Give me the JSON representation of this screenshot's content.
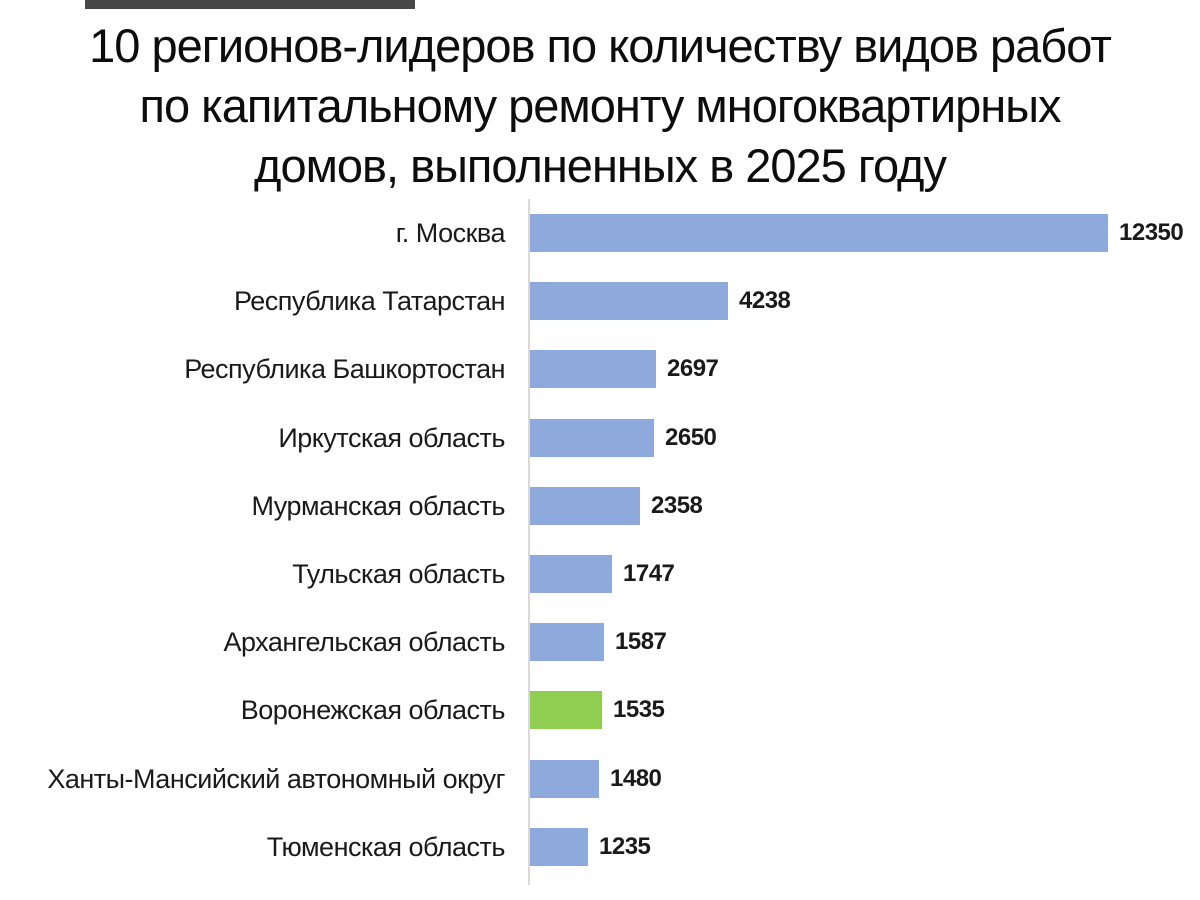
{
  "title": {
    "lines": [
      "10 регионов-лидеров по количеству видов работ",
      "по капитальному ремонту многоквартирных",
      "домов, выполненных в 2025 году"
    ]
  },
  "chart_data": {
    "type": "bar",
    "orientation": "horizontal",
    "title": "10 регионов-лидеров по количеству видов работ по капитальному ремонту многоквартирных домов, выполненных в 2025 году",
    "categories": [
      "г. Москва",
      "Республика Татарстан",
      "Республика Башкортостан",
      "Иркутская область",
      "Мурманская область",
      "Тульская область",
      "Архангельская область",
      "Воронежская область",
      "Ханты-Мансийский автономный округ",
      "Тюменская область"
    ],
    "values": [
      12350,
      4238,
      2697,
      2650,
      2358,
      1747,
      1587,
      1535,
      1480,
      1235
    ],
    "value_labels_shown": true,
    "highlight_index": 7,
    "highlight_category": "Воронежская область",
    "colors": {
      "bar_default": "#8EA9DB",
      "bar_highlight": "#8FCE50",
      "axis_line": "#D9D9D9",
      "text": "#1A1A1A",
      "title_text": "#0D0D0D"
    },
    "xlim": [
      0,
      12350
    ],
    "x_axis_ticks_shown": false,
    "gridlines_shown": false,
    "legend_shown": false
  }
}
